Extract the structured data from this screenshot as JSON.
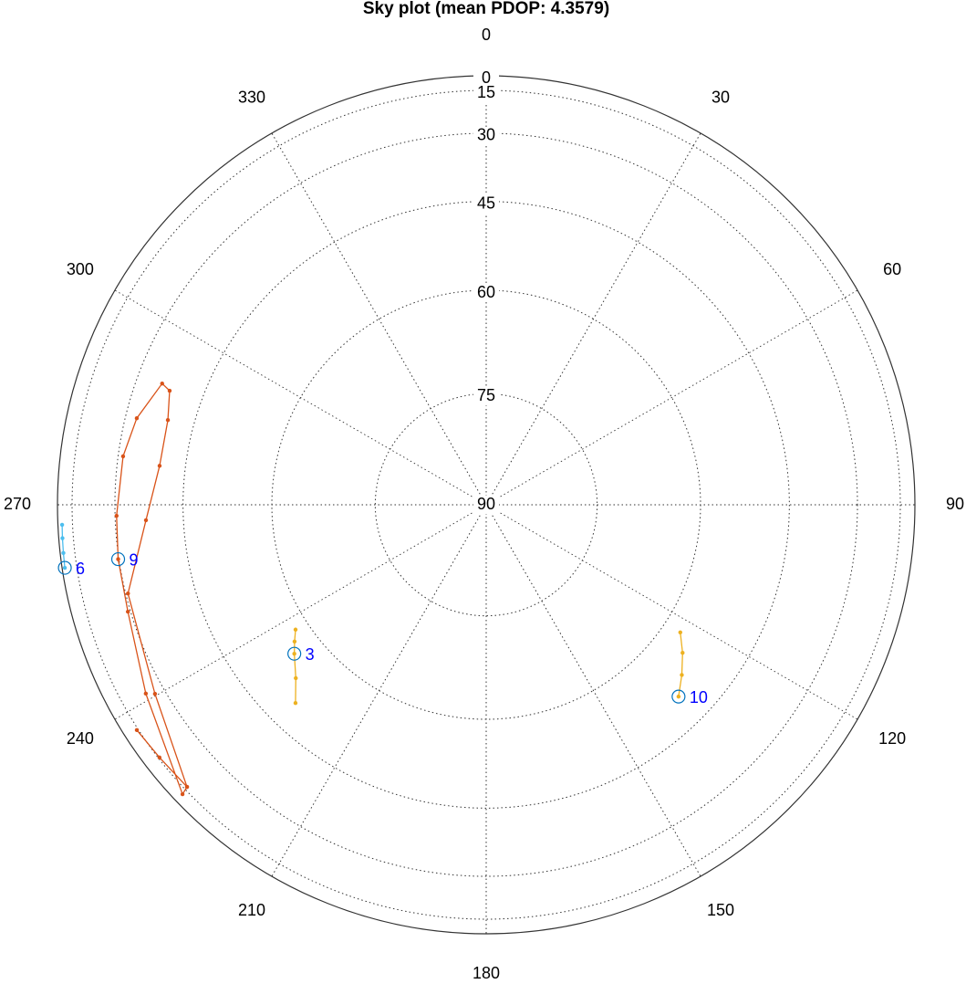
{
  "chart_data": {
    "type": "skyplot",
    "title": "Sky plot (mean PDOP: 4.3579)",
    "radial_scale": "cosine",
    "ylim": [
      90,
      0
    ],
    "yticks": [
      0,
      15,
      30,
      45,
      60,
      75,
      90
    ],
    "xlim": [
      0,
      360
    ],
    "xticks": [
      0,
      30,
      60,
      90,
      120,
      150,
      180,
      210,
      240,
      270,
      300,
      330
    ],
    "grid": true,
    "marker_color": "#0072bd",
    "label_color": "#0000ff",
    "series": [
      {
        "name": "6",
        "color": "#4dbeee",
        "x": [
          267.3,
          265.5,
          263.5,
          261.5
        ],
        "values": [
          8.0,
          7.5,
          7.0,
          6.4
        ],
        "marker": {
          "x": 261.5,
          "y": 6.4
        }
      },
      {
        "name": "9",
        "color": "#d95319",
        "x": [
          237.2,
          232.3,
          226.7,
          226.4,
          241.0,
          253.4,
          261.6,
          268.3,
          277.6,
          283.9,
          290.5,
          289.8,
          284.9,
          276.8,
          267.4,
          256.1,
          240.3,
          226.7
        ],
        "values": [
          14.2,
          15.6,
          16.5,
          12.0,
          24.8,
          29.3,
          29.8,
          30.4,
          31.3,
          32.9,
          36.2,
          38.3,
          39.8,
          39.9,
          37.4,
          30.6,
          27.2,
          16.5
        ],
        "marker": {
          "x": 261.6,
          "y": 29.8
        }
      },
      {
        "name": "3",
        "color": "#edb120",
        "x": [
          236.8,
          234.5,
          232.2,
          227.7,
          223.9
        ],
        "values": [
          57.9,
          56.7,
          55.5,
          53.1,
          50.1
        ],
        "marker": {
          "x": 232.2,
          "y": 55.5
        }
      },
      {
        "name": "10",
        "color": "#edb120",
        "x": [
          123.3,
          127.0,
          131.0,
          134.9
        ],
        "values": [
          57.2,
          55.0,
          52.8,
          50.7
        ],
        "marker": {
          "x": 134.9,
          "y": 50.7
        }
      }
    ]
  }
}
